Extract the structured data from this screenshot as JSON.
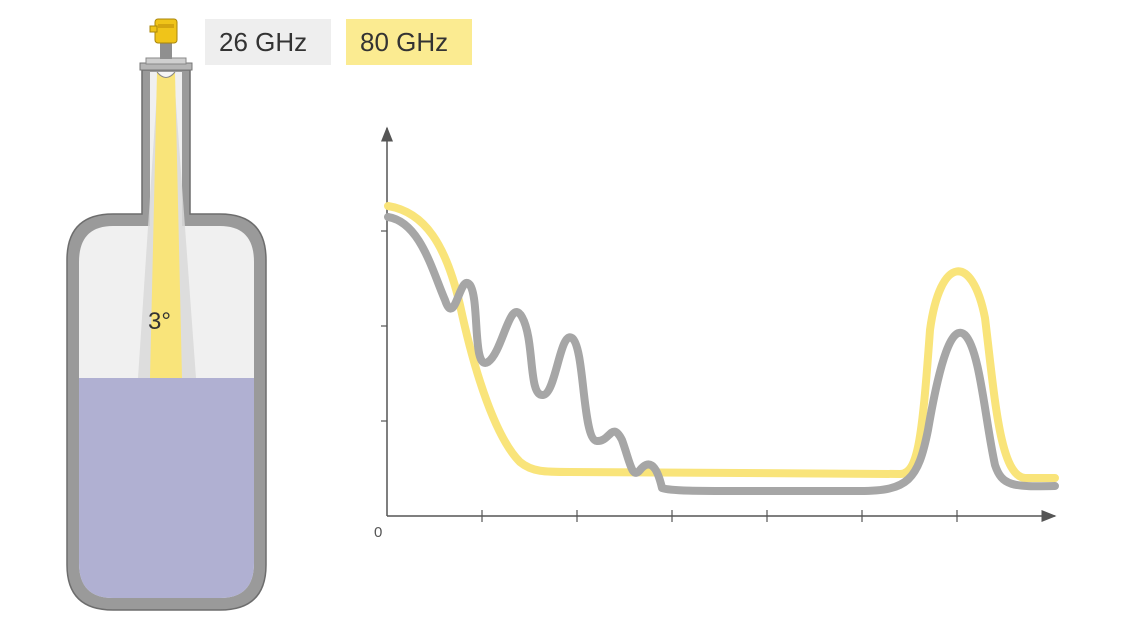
{
  "legend": {
    "low_freq_label": "26 GHz",
    "high_freq_label": "80 GHz"
  },
  "beam": {
    "angle_label": "3°"
  },
  "chart": {
    "origin_label": "0"
  },
  "colors": {
    "low_freq": "#a6a6a6",
    "high_freq": "#f9e47a",
    "low_freq_badge": "#eeeeee",
    "high_freq_badge": "#fbeb91",
    "liquid": "#b0b0d2",
    "vessel_wall": "#9a9a9a"
  },
  "icons": {
    "sensor": "radar-sensor-icon",
    "vessel": "tank-vessel-icon"
  }
}
